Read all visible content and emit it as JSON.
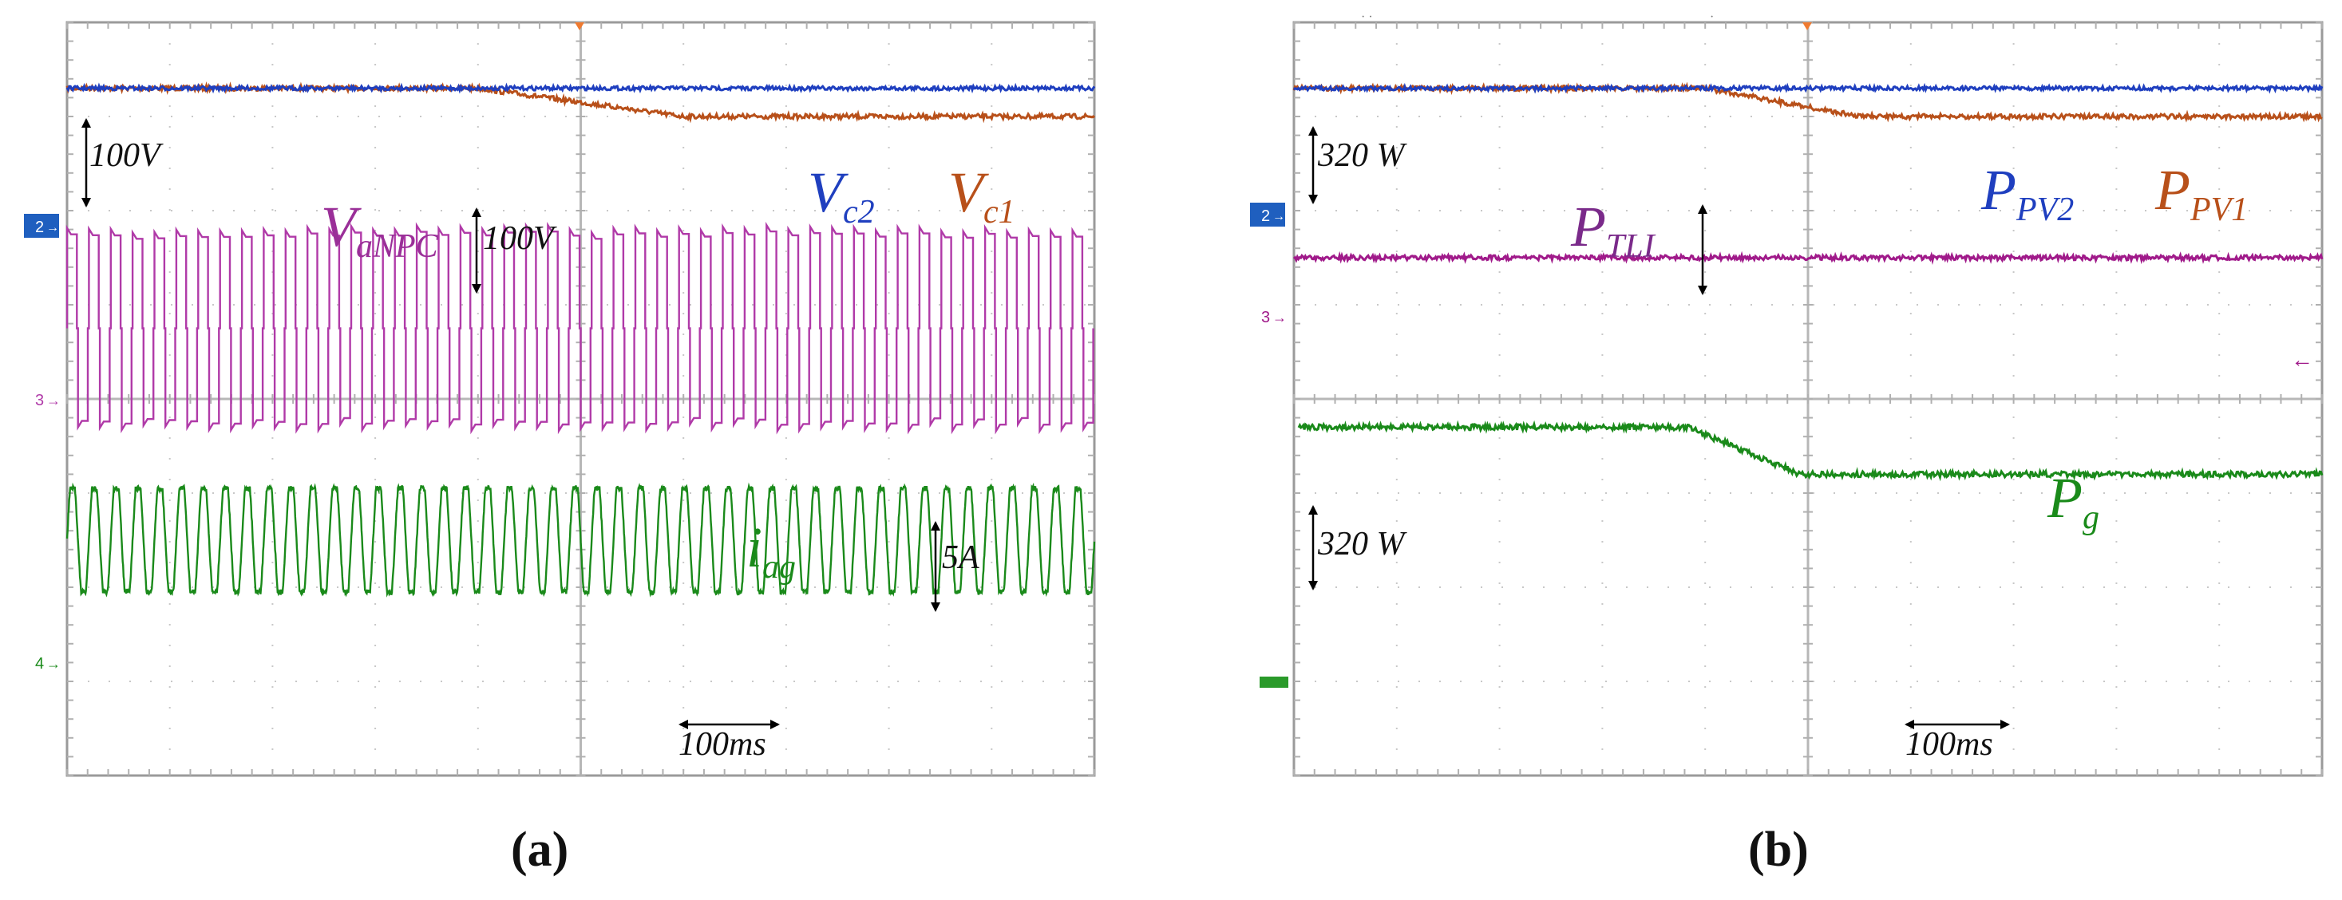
{
  "chart_data": [
    {
      "type": "line",
      "panel": "a",
      "caption": "(a)",
      "x_unit_label": "100ms",
      "series": [
        {
          "name": "Vc2",
          "color": "#1f3fbf",
          "channel": "2",
          "level_div": 1.9,
          "note": "flat"
        },
        {
          "name": "Vc1",
          "color": "#b8501a",
          "channel": "2",
          "level_start_div": 1.9,
          "level_end_div": 1.6,
          "transition_div": [
            4.0,
            6.0
          ]
        },
        {
          "name": "VaNPC",
          "color": "#b03aa8",
          "channel": "3",
          "type": "square",
          "amplitude_div": 1.0,
          "periods": 47
        },
        {
          "name": "iag",
          "color": "#1a8a1a",
          "channel": "4",
          "type": "sine",
          "amplitude_div": 0.55,
          "periods": 47
        }
      ],
      "scales": [
        "100V",
        "100V",
        "5A"
      ],
      "labels": {
        "vc2": {
          "main": "V",
          "sub": "c2"
        },
        "vc1": {
          "main": "V",
          "sub": "c1"
        },
        "vanpc": {
          "main": "V",
          "sub": "aNPC"
        },
        "iag": {
          "main": "i",
          "sub": "ag"
        }
      },
      "channel_markers": [
        "2",
        "3",
        "4"
      ]
    },
    {
      "type": "line",
      "panel": "b",
      "caption": "(b)",
      "x_unit_label": "100ms",
      "series": [
        {
          "name": "PPV2",
          "color": "#1f3fbf",
          "channel": "2",
          "level_div": 1.9,
          "note": "flat"
        },
        {
          "name": "PPV1",
          "color": "#b8501a",
          "channel": "2",
          "level_start_div": 1.9,
          "level_end_div": 1.6,
          "transition_div": [
            4.0,
            5.5
          ]
        },
        {
          "name": "PTLI",
          "color": "#a01a8a",
          "channel": "3",
          "level_div": 0.5,
          "note": "flat"
        },
        {
          "name": "Pg",
          "color": "#1a8a1a",
          "channel": "4",
          "level_start_div": -0.2,
          "level_end_div": -0.7,
          "transition_div": [
            3.8,
            4.9
          ]
        }
      ],
      "scales": [
        "320 W",
        "320 W"
      ],
      "labels": {
        "ppv2": {
          "main": "P",
          "sub": "PV2"
        },
        "ppv1": {
          "main": "P",
          "sub": "PV1"
        },
        "ptli": {
          "main": "P",
          "sub": "TLI"
        },
        "pg": {
          "main": "P",
          "sub": "g"
        }
      },
      "channel_markers": [
        "2",
        "3"
      ]
    }
  ],
  "captions": {
    "a": "(a)",
    "b": "(b)"
  }
}
